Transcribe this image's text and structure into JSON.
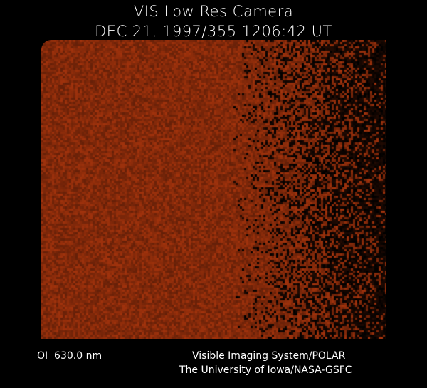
{
  "header": {
    "title": "VIS Low Res Camera",
    "subtitle": "DEC 21, 1997/355 1206:42 UT"
  },
  "image": {
    "base_color": "#7a2a0a",
    "highlight_color": "#a8400f"
  },
  "footer": {
    "filter": "OI  630.0 nm",
    "instrument": "Visible Imaging System/POLAR",
    "institution": "The University of Iowa/NASA-GSFC"
  }
}
